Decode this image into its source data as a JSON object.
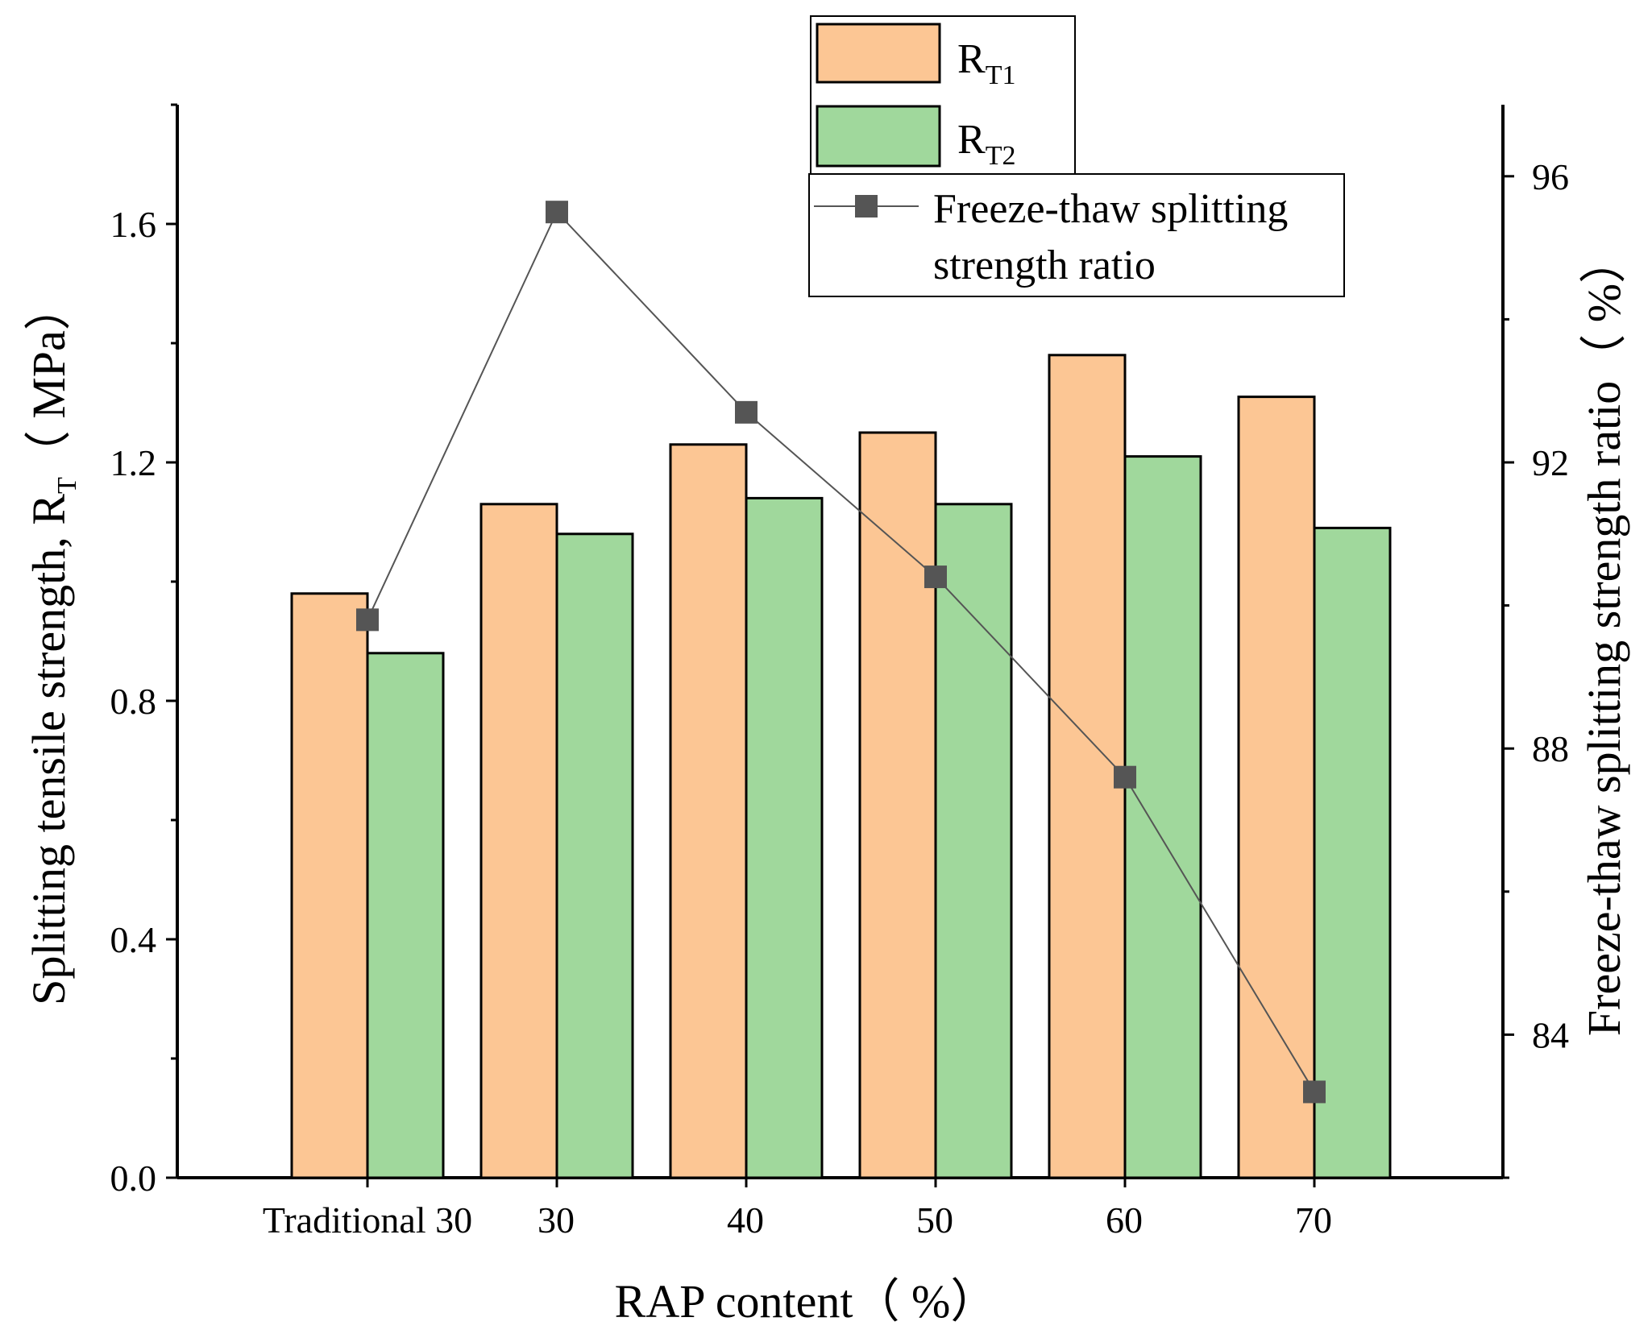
{
  "chart_data": {
    "type": "bar",
    "categories": [
      "Traditional 30",
      "30",
      "40",
      "50",
      "60",
      "70"
    ],
    "series": [
      {
        "name": "R_T1",
        "label_main": "R",
        "label_sub": "T1",
        "color": "#FCC694",
        "values": [
          0.98,
          1.13,
          1.23,
          1.25,
          1.38,
          1.31
        ]
      },
      {
        "name": "R_T2",
        "label_main": "R",
        "label_sub": "T2",
        "color": "#A0D89C",
        "values": [
          0.88,
          1.08,
          1.14,
          1.13,
          1.21,
          1.09
        ]
      }
    ],
    "line_series": {
      "name": "Freeze-thaw splitting strength ratio",
      "legend_lines": [
        "Freeze-thaw splitting",
        "strength ratio"
      ],
      "color": "#555555",
      "values": [
        89.8,
        95.5,
        92.7,
        90.4,
        87.6,
        83.2
      ]
    },
    "xlabel": "RAP content（ %）",
    "ylabel_main": "Splitting tensile strength, R",
    "ylabel_sub": "T",
    "ylabel_tail": "（ MPa）",
    "y2label": "Freeze-thaw splitting strength ratio（ %）",
    "ylim": [
      0,
      1.8
    ],
    "y_ticks": [
      0.0,
      0.4,
      0.8,
      1.2,
      1.6
    ],
    "y_tick_labels": [
      "0.0",
      "0.4",
      "0.8",
      "1.2",
      "1.6"
    ],
    "y2lim": [
      82,
      97
    ],
    "y2_ticks": [
      84,
      88,
      92,
      96
    ],
    "y2_tick_labels": [
      "84",
      "88",
      "92",
      "96"
    ]
  }
}
